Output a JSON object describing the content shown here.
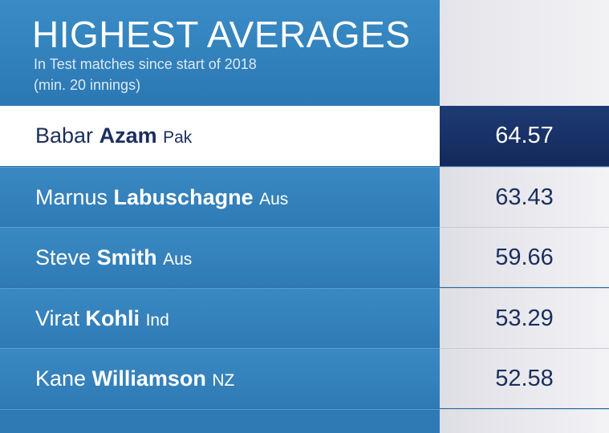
{
  "header": {
    "title": "HIGHEST AVERAGES",
    "subtitle": [
      "In Test matches since start of 2018",
      "(min. 20 innings)"
    ]
  },
  "table": {
    "rows": [
      {
        "first": "Babar",
        "last": "Azam",
        "country": "Pak",
        "average": 64.57
      },
      {
        "first": "Marnus",
        "last": "Labuschagne",
        "country": "Aus",
        "average": 63.43
      },
      {
        "first": "Steve",
        "last": "Smith",
        "country": "Aus",
        "average": 59.66
      },
      {
        "first": "Virat",
        "last": "Kohli",
        "country": "Ind",
        "average": 53.29
      },
      {
        "first": "Kane",
        "last": "Williamson",
        "country": "NZ",
        "average": 52.58
      }
    ]
  }
}
